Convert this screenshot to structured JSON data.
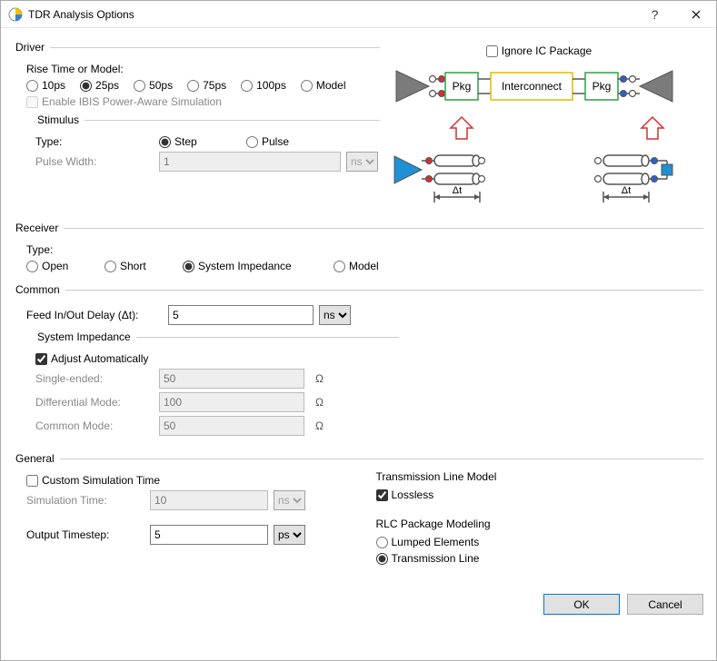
{
  "window": {
    "title": "TDR Analysis Options"
  },
  "driver": {
    "legend": "Driver",
    "rise_label": "Rise Time or Model:",
    "rise_options": [
      "10ps",
      "25ps",
      "50ps",
      "75ps",
      "100ps",
      "Model"
    ],
    "rise_selected": "25ps",
    "ibis_label": "Enable IBIS Power-Aware Simulation",
    "ibis_checked": false,
    "ibis_enabled": false,
    "stimulus": {
      "legend": "Stimulus",
      "type_label": "Type:",
      "type_options": [
        "Step",
        "Pulse"
      ],
      "type_selected": "Step",
      "pw_label": "Pulse Width:",
      "pw_value": "1",
      "pw_unit": "ns",
      "pw_enabled": false
    }
  },
  "diagram": {
    "ignore_label": "Ignore IC Package",
    "ignore_checked": false,
    "pkg_label": "Pkg",
    "interconnect_label": "Interconnect",
    "delta_label": "Δt",
    "colors": {
      "amp_grey": "#7b7b7b",
      "amp_blue": "#1e90d4",
      "pkg_border": "#2ea043",
      "interconnect_border": "#e6b800",
      "red": "#d62f2f",
      "blue": "#2a5fd1",
      "port_fill": "#ffffff",
      "wire": "#555555",
      "arrow_red": "#d62f2f"
    }
  },
  "receiver": {
    "legend": "Receiver",
    "type_label": "Type:",
    "options": [
      "Open",
      "Short",
      "System Impedance",
      "Model"
    ],
    "selected": "System Impedance"
  },
  "common": {
    "legend": "Common",
    "feed_label": "Feed In/Out Delay (Δt):",
    "feed_value": "5",
    "feed_unit": "ns",
    "sysimp": {
      "legend": "System Impedance",
      "adjust_label": "Adjust Automatically",
      "adjust_checked": true,
      "single_label": "Single-ended:",
      "single_value": "50",
      "diff_label": "Differential Mode:",
      "diff_value": "100",
      "common_label": "Common Mode:",
      "common_value": "50",
      "unit": "Ω"
    }
  },
  "general": {
    "legend": "General",
    "custom_label": "Custom Simulation Time",
    "custom_checked": false,
    "simtime_label": "Simulation Time:",
    "simtime_value": "10",
    "simtime_unit": "ns",
    "simtime_enabled": false,
    "out_label": "Output Timestep:",
    "out_value": "5",
    "out_unit": "ps",
    "tline": {
      "legend": "Transmission Line Model",
      "lossless_label": "Lossless",
      "lossless_checked": true
    },
    "rlc": {
      "legend": "RLC Package Modeling",
      "options": [
        "Lumped Elements",
        "Transmission Line"
      ],
      "selected": "Transmission Line"
    }
  },
  "buttons": {
    "ok": "OK",
    "cancel": "Cancel"
  }
}
